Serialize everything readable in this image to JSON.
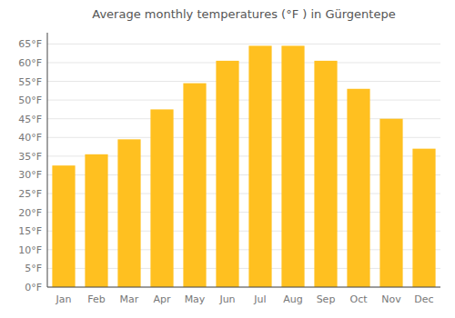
{
  "chart_data": {
    "type": "bar",
    "title": "Average monthly temperatures (°F ) in Gürgentepe",
    "categories": [
      "Jan",
      "Feb",
      "Mar",
      "Apr",
      "May",
      "Jun",
      "Jul",
      "Aug",
      "Sep",
      "Oct",
      "Nov",
      "Dec"
    ],
    "values": [
      32.5,
      35.5,
      39.5,
      47.5,
      54.5,
      60.5,
      64.5,
      64.5,
      60.5,
      53.0,
      45.0,
      37.0
    ],
    "color": "#FFC020",
    "ylim": [
      0,
      68
    ],
    "yticks": [
      {
        "value": 0,
        "label": "0°F"
      },
      {
        "value": 5,
        "label": "5°F"
      },
      {
        "value": 10,
        "label": "10°F"
      },
      {
        "value": 15,
        "label": "15°F"
      },
      {
        "value": 20,
        "label": "20°F"
      },
      {
        "value": 25,
        "label": "25°F"
      },
      {
        "value": 30,
        "label": "30°F"
      },
      {
        "value": 35,
        "label": "35°F"
      },
      {
        "value": 40,
        "label": "40°F"
      },
      {
        "value": 45,
        "label": "45°F"
      },
      {
        "value": 50,
        "label": "50°F"
      },
      {
        "value": 55,
        "label": "55°F"
      },
      {
        "value": 60,
        "label": "60°F"
      },
      {
        "value": 65,
        "label": "65°F"
      }
    ],
    "grid": true
  }
}
